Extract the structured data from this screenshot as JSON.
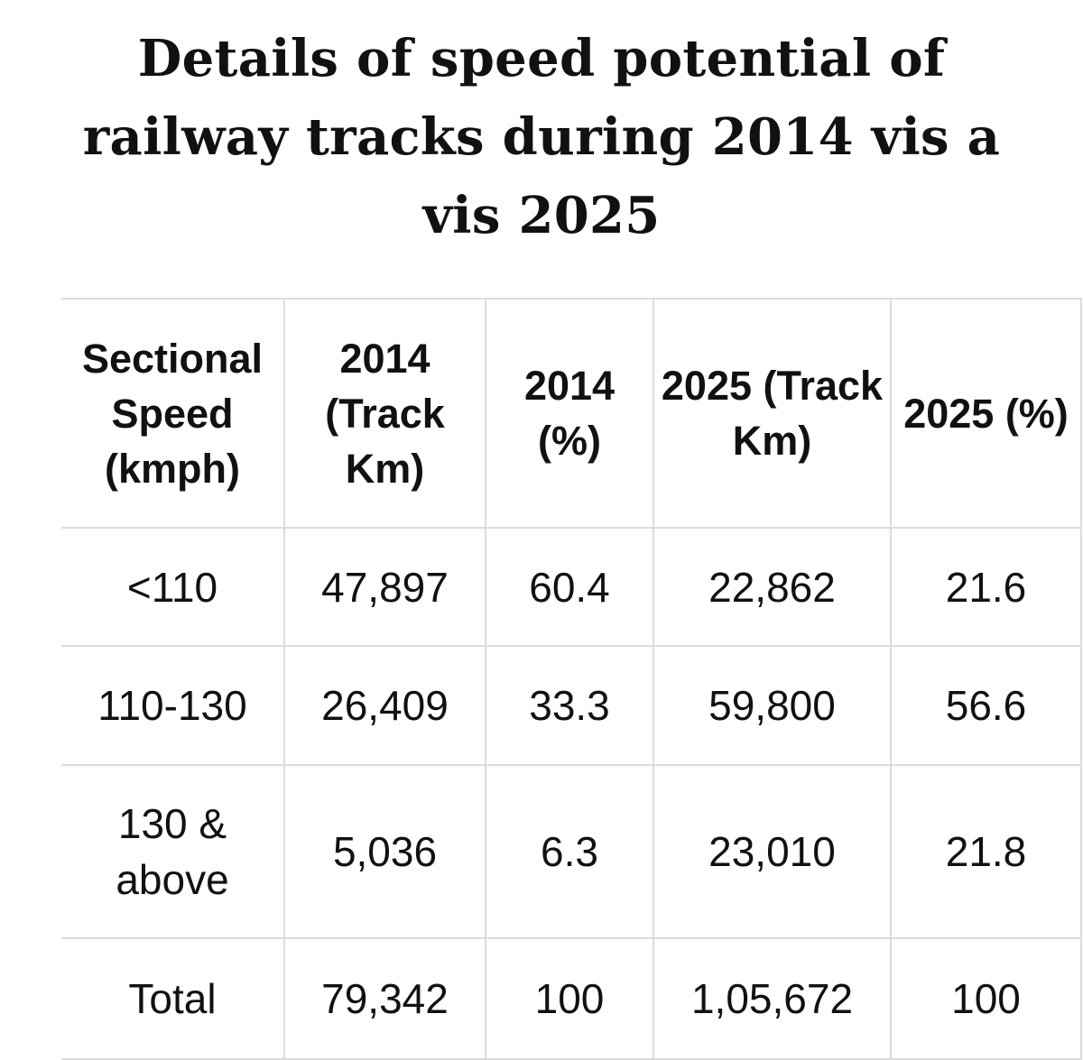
{
  "title": "Details of speed potential of railway tracks during 2014 vis a vis 2025",
  "table": {
    "headers": [
      "Sectional Speed (kmph)",
      "2014 (Track Km)",
      "2014 (%)",
      "2025 (Track Km)",
      "2025 (%)"
    ],
    "rows": [
      [
        "<110",
        "47,897",
        "60.4",
        "22,862",
        "21.6"
      ],
      [
        "110-130",
        "26,409",
        "33.3",
        "59,800",
        "56.6"
      ],
      [
        "130 & above",
        "5,036",
        "6.3",
        "23,010",
        "21.8"
      ],
      [
        "Total",
        "79,342",
        "100",
        "1,05,672",
        "100"
      ]
    ]
  },
  "colors": {
    "text": "#111111",
    "border": "#dcdcdc",
    "background": "#ffffff"
  }
}
